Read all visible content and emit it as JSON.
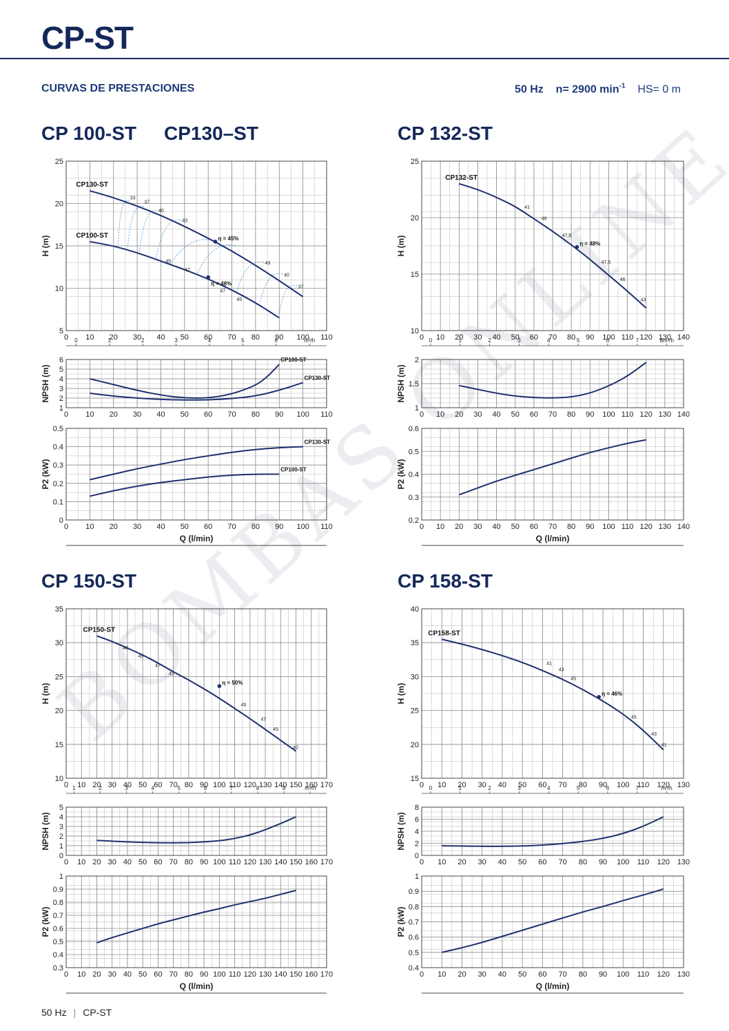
{
  "header": {
    "title": "CP-ST",
    "section": "CURVAS DE PRESTACIONES",
    "freq": "50 Hz",
    "speed_label": "n= 2900 min",
    "speed_sup": "-1",
    "hs": "HS= 0 m"
  },
  "models": {
    "a": "CP 100-ST",
    "b": "CP130–ST",
    "c": "CP 132-ST",
    "d": "CP 150-ST",
    "e": "CP 158-ST"
  },
  "watermark": "BOMBAS ONLINE",
  "footer": {
    "freq": "50 Hz",
    "sep": "|",
    "name": "CP-ST"
  },
  "colors": {
    "curve": "#1d2f6f",
    "grid": "#b8b8b8",
    "eff": "#3a8fd6",
    "text": "#14285a"
  },
  "chart_data": [
    {
      "id": "p1h",
      "type": "line",
      "ylabel": "H (m)",
      "xlim": [
        0,
        110
      ],
      "ylim": [
        5,
        25
      ],
      "xticks": [
        0,
        10,
        20,
        30,
        40,
        50,
        60,
        70,
        80,
        90,
        100,
        110
      ],
      "yticks": [
        5,
        10,
        15,
        20,
        25
      ],
      "m3h_ticks": [
        "0",
        "1",
        "2",
        "3",
        "4",
        "5",
        "6",
        "m³/h"
      ],
      "series": [
        {
          "name": "CP130-ST",
          "x": [
            10,
            20,
            30,
            40,
            50,
            60,
            70,
            80,
            90,
            100
          ],
          "y": [
            21.5,
            20.7,
            19.7,
            18.6,
            17.3,
            15.9,
            14.4,
            12.7,
            10.9,
            9.0
          ]
        },
        {
          "name": "CP100-ST",
          "x": [
            10,
            20,
            30,
            40,
            50,
            60,
            70,
            80,
            90
          ],
          "y": [
            15.5,
            15.0,
            14.2,
            13.2,
            12.2,
            11.1,
            9.8,
            8.3,
            6.5
          ]
        }
      ],
      "annotations": [
        {
          "x": 63,
          "y": 15.5,
          "label": "η = 45%",
          "marker": true
        },
        {
          "x": 60,
          "y": 11.3,
          "label": "η = 48%",
          "marker": true
        },
        {
          "x": 27,
          "y": 20.5,
          "label": "33"
        },
        {
          "x": 33,
          "y": 20.0,
          "label": "37"
        },
        {
          "x": 39,
          "y": 19.0,
          "label": "40"
        },
        {
          "x": 49,
          "y": 17.8,
          "label": "43"
        },
        {
          "x": 84,
          "y": 12.8,
          "label": "43"
        },
        {
          "x": 92,
          "y": 11.4,
          "label": "40"
        },
        {
          "x": 98,
          "y": 10.0,
          "label": "37"
        },
        {
          "x": 42,
          "y": 13.0,
          "label": "45"
        },
        {
          "x": 50,
          "y": 12.0,
          "label": "47"
        },
        {
          "x": 65,
          "y": 9.5,
          "label": "47"
        },
        {
          "x": 72,
          "y": 8.5,
          "label": "45"
        }
      ]
    },
    {
      "id": "p1n",
      "type": "line",
      "ylabel": "NPSH (m)",
      "xlim": [
        0,
        110
      ],
      "ylim": [
        1,
        6
      ],
      "xticks": [
        0,
        10,
        20,
        30,
        40,
        50,
        60,
        70,
        80,
        90,
        100,
        110
      ],
      "yticks": [
        1,
        2,
        3,
        4,
        5,
        6
      ],
      "series": [
        {
          "name": "CP100-ST",
          "x": [
            10,
            20,
            30,
            40,
            50,
            60,
            70,
            80,
            85,
            90
          ],
          "y": [
            4.0,
            3.4,
            2.8,
            2.3,
            2.0,
            2.0,
            2.4,
            3.3,
            4.2,
            5.5
          ]
        },
        {
          "name": "CP130-ST",
          "x": [
            10,
            20,
            30,
            40,
            50,
            60,
            70,
            80,
            90,
            100
          ],
          "y": [
            2.5,
            2.2,
            2.0,
            1.85,
            1.8,
            1.8,
            1.95,
            2.2,
            2.8,
            3.6
          ]
        }
      ]
    },
    {
      "id": "p1p",
      "type": "line",
      "ylabel": "P2 (kW)",
      "xlabel": "Q (l/min)",
      "xlim": [
        0,
        110
      ],
      "ylim": [
        0,
        0.5
      ],
      "xticks": [
        0,
        10,
        20,
        30,
        40,
        50,
        60,
        70,
        80,
        90,
        100,
        110
      ],
      "yticks": [
        0,
        0.1,
        0.2,
        0.3,
        0.4,
        0.5
      ],
      "series": [
        {
          "name": "CP130-ST",
          "x": [
            10,
            20,
            30,
            40,
            50,
            60,
            70,
            80,
            90,
            100
          ],
          "y": [
            0.22,
            0.25,
            0.28,
            0.305,
            0.33,
            0.35,
            0.37,
            0.385,
            0.395,
            0.4
          ]
        },
        {
          "name": "CP100-ST",
          "x": [
            10,
            20,
            30,
            40,
            50,
            60,
            70,
            80,
            90
          ],
          "y": [
            0.13,
            0.16,
            0.185,
            0.205,
            0.22,
            0.235,
            0.245,
            0.25,
            0.25
          ]
        }
      ]
    },
    {
      "id": "p2h",
      "type": "line",
      "ylabel": "H (m)",
      "xlim": [
        0,
        140
      ],
      "ylim": [
        10,
        25
      ],
      "xticks": [
        0,
        10,
        20,
        30,
        40,
        50,
        60,
        70,
        80,
        90,
        100,
        110,
        120,
        130,
        140
      ],
      "yticks": [
        10,
        15,
        20,
        25
      ],
      "m3h_ticks": [
        "0",
        "1",
        "2",
        "3",
        "4",
        "5",
        "6",
        "7",
        "8m³/h"
      ],
      "series": [
        {
          "name": "CP132-ST",
          "x": [
            20,
            30,
            40,
            50,
            60,
            70,
            80,
            90,
            100,
            110,
            120
          ],
          "y": [
            23.0,
            22.5,
            21.8,
            21.0,
            19.9,
            18.8,
            17.6,
            16.3,
            14.9,
            13.5,
            12.0
          ]
        }
      ],
      "annotations": [
        {
          "x": 83,
          "y": 17.4,
          "label": "η = 48%",
          "marker": true
        },
        {
          "x": 55,
          "y": 20.8,
          "label": "41"
        },
        {
          "x": 64,
          "y": 19.8,
          "label": "46"
        },
        {
          "x": 75,
          "y": 18.3,
          "label": "47,5"
        },
        {
          "x": 96,
          "y": 15.9,
          "label": "47,5"
        },
        {
          "x": 106,
          "y": 14.4,
          "label": "46"
        },
        {
          "x": 117,
          "y": 12.6,
          "label": "43"
        }
      ]
    },
    {
      "id": "p2n",
      "type": "line",
      "ylabel": "NPSH (m)",
      "xlim": [
        0,
        140
      ],
      "ylim": [
        1,
        2
      ],
      "xticks": [
        0,
        10,
        20,
        30,
        40,
        50,
        60,
        70,
        80,
        90,
        100,
        110,
        120,
        130,
        140
      ],
      "yticks": [
        1,
        1.5,
        2
      ],
      "series": [
        {
          "name": "CP132-ST",
          "x": [
            20,
            30,
            40,
            50,
            60,
            70,
            80,
            90,
            100,
            110,
            120
          ],
          "y": [
            1.46,
            1.38,
            1.3,
            1.24,
            1.21,
            1.2,
            1.22,
            1.3,
            1.45,
            1.65,
            1.94
          ]
        }
      ]
    },
    {
      "id": "p2p",
      "type": "line",
      "ylabel": "P2 (kW)",
      "xlabel": "Q (l/min)",
      "xlim": [
        0,
        140
      ],
      "ylim": [
        0.2,
        0.6
      ],
      "xticks": [
        0,
        10,
        20,
        30,
        40,
        50,
        60,
        70,
        80,
        90,
        100,
        110,
        120,
        130,
        140
      ],
      "yticks": [
        0.2,
        0.3,
        0.4,
        0.5,
        0.6
      ],
      "series": [
        {
          "name": "CP132-ST",
          "x": [
            20,
            30,
            40,
            50,
            60,
            70,
            80,
            90,
            100,
            110,
            120
          ],
          "y": [
            0.31,
            0.34,
            0.37,
            0.395,
            0.42,
            0.445,
            0.47,
            0.495,
            0.515,
            0.535,
            0.55
          ]
        }
      ]
    },
    {
      "id": "p3h",
      "type": "line",
      "ylabel": "H (m)",
      "xlim": [
        0,
        170
      ],
      "ylim": [
        10,
        35
      ],
      "xticks": [
        0,
        10,
        20,
        30,
        40,
        50,
        60,
        70,
        80,
        90,
        100,
        110,
        120,
        130,
        140,
        150,
        160,
        170
      ],
      "yticks": [
        10,
        15,
        20,
        25,
        30,
        35
      ],
      "m3h_ticks": [
        "1",
        "2",
        "3",
        "4",
        "5",
        "6",
        "7",
        "8",
        "9",
        "m³/h"
      ],
      "series": [
        {
          "name": "CP150-ST",
          "x": [
            20,
            30,
            40,
            50,
            60,
            70,
            80,
            90,
            100,
            110,
            120,
            130,
            140,
            150
          ],
          "y": [
            31.0,
            30.2,
            29.2,
            28.2,
            27.0,
            25.7,
            24.5,
            23.2,
            21.8,
            20.3,
            18.8,
            17.2,
            15.6,
            14.0
          ]
        }
      ],
      "annotations": [
        {
          "x": 100,
          "y": 23.6,
          "label": "η = 50%",
          "marker": true
        },
        {
          "x": 37,
          "y": 29.0,
          "label": "40"
        },
        {
          "x": 47,
          "y": 27.8,
          "label": "45"
        },
        {
          "x": 58,
          "y": 26.4,
          "label": "47"
        },
        {
          "x": 67,
          "y": 25.2,
          "label": "49"
        },
        {
          "x": 114,
          "y": 20.6,
          "label": "49"
        },
        {
          "x": 127,
          "y": 18.5,
          "label": "47"
        },
        {
          "x": 135,
          "y": 17.0,
          "label": "45"
        },
        {
          "x": 148,
          "y": 14.3,
          "label": "40"
        }
      ]
    },
    {
      "id": "p3n",
      "type": "line",
      "ylabel": "NPSH (m)",
      "xlim": [
        0,
        170
      ],
      "ylim": [
        0,
        5
      ],
      "xticks": [
        0,
        10,
        20,
        30,
        40,
        50,
        60,
        70,
        80,
        90,
        100,
        110,
        120,
        130,
        140,
        150,
        160,
        170
      ],
      "yticks": [
        0,
        1,
        2,
        3,
        4,
        5
      ],
      "series": [
        {
          "name": "CP150-ST",
          "x": [
            20,
            40,
            60,
            80,
            100,
            110,
            120,
            130,
            140,
            150
          ],
          "y": [
            1.55,
            1.4,
            1.3,
            1.3,
            1.5,
            1.75,
            2.1,
            2.65,
            3.3,
            4.0
          ]
        }
      ]
    },
    {
      "id": "p3p",
      "type": "line",
      "ylabel": "P2 (kW)",
      "xlabel": "Q (l/min)",
      "xlim": [
        0,
        170
      ],
      "ylim": [
        0.3,
        1
      ],
      "xticks": [
        0,
        10,
        20,
        30,
        40,
        50,
        60,
        70,
        80,
        90,
        100,
        110,
        120,
        130,
        140,
        150,
        160,
        170
      ],
      "yticks": [
        0.3,
        0.4,
        0.5,
        0.6,
        0.7,
        0.8,
        0.9,
        1
      ],
      "series": [
        {
          "name": "CP150-ST",
          "x": [
            20,
            30,
            40,
            50,
            60,
            70,
            80,
            90,
            100,
            110,
            120,
            130,
            140,
            150
          ],
          "y": [
            0.49,
            0.53,
            0.565,
            0.6,
            0.635,
            0.665,
            0.695,
            0.725,
            0.75,
            0.78,
            0.805,
            0.83,
            0.86,
            0.89
          ]
        }
      ]
    },
    {
      "id": "p4h",
      "type": "line",
      "ylabel": "H (m)",
      "xlim": [
        0,
        130
      ],
      "ylim": [
        15,
        40
      ],
      "xticks": [
        0,
        10,
        20,
        30,
        40,
        50,
        60,
        70,
        80,
        90,
        100,
        110,
        120,
        130
      ],
      "yticks": [
        15,
        20,
        25,
        30,
        35,
        40
      ],
      "m3h_ticks": [
        "0",
        "1",
        "2",
        "3",
        "4",
        "5",
        "6",
        "7",
        "m³/h"
      ],
      "series": [
        {
          "name": "CP158-ST",
          "x": [
            10,
            20,
            30,
            40,
            50,
            60,
            70,
            80,
            90,
            100,
            110,
            120
          ],
          "y": [
            35.5,
            34.8,
            34.0,
            33.1,
            32.1,
            30.9,
            29.6,
            28.1,
            26.4,
            24.5,
            22.1,
            19.2
          ]
        }
      ],
      "annotations": [
        {
          "x": 88,
          "y": 27.0,
          "label": "η = 46%",
          "marker": true
        },
        {
          "x": 62,
          "y": 31.7,
          "label": "41"
        },
        {
          "x": 68,
          "y": 30.8,
          "label": "43"
        },
        {
          "x": 74,
          "y": 29.5,
          "label": "45"
        },
        {
          "x": 104,
          "y": 23.8,
          "label": "45"
        },
        {
          "x": 114,
          "y": 21.3,
          "label": "43"
        },
        {
          "x": 119,
          "y": 19.7,
          "label": "41"
        }
      ]
    },
    {
      "id": "p4n",
      "type": "line",
      "ylabel": "NPSH (m)",
      "xlim": [
        0,
        130
      ],
      "ylim": [
        0,
        8
      ],
      "xticks": [
        0,
        10,
        20,
        30,
        40,
        50,
        60,
        70,
        80,
        90,
        100,
        110,
        120,
        130
      ],
      "yticks": [
        0,
        2,
        4,
        6,
        8
      ],
      "series": [
        {
          "name": "CP158-ST",
          "x": [
            10,
            20,
            30,
            40,
            50,
            60,
            70,
            80,
            90,
            100,
            110,
            120
          ],
          "y": [
            1.6,
            1.55,
            1.5,
            1.5,
            1.55,
            1.7,
            1.95,
            2.3,
            2.8,
            3.6,
            4.8,
            6.4
          ]
        }
      ]
    },
    {
      "id": "p4p",
      "type": "line",
      "ylabel": "P2 (kW)",
      "xlabel": "Q (l/min)",
      "xlim": [
        0,
        130
      ],
      "ylim": [
        0.4,
        1
      ],
      "xticks": [
        0,
        10,
        20,
        30,
        40,
        50,
        60,
        70,
        80,
        90,
        100,
        110,
        120,
        130
      ],
      "yticks": [
        0.4,
        0.5,
        0.6,
        0.7,
        0.8,
        0.9,
        1
      ],
      "series": [
        {
          "name": "CP158-ST",
          "x": [
            10,
            20,
            30,
            40,
            50,
            60,
            70,
            80,
            90,
            100,
            110,
            120
          ],
          "y": [
            0.5,
            0.53,
            0.565,
            0.605,
            0.645,
            0.685,
            0.725,
            0.765,
            0.8,
            0.84,
            0.875,
            0.915
          ]
        }
      ]
    }
  ]
}
